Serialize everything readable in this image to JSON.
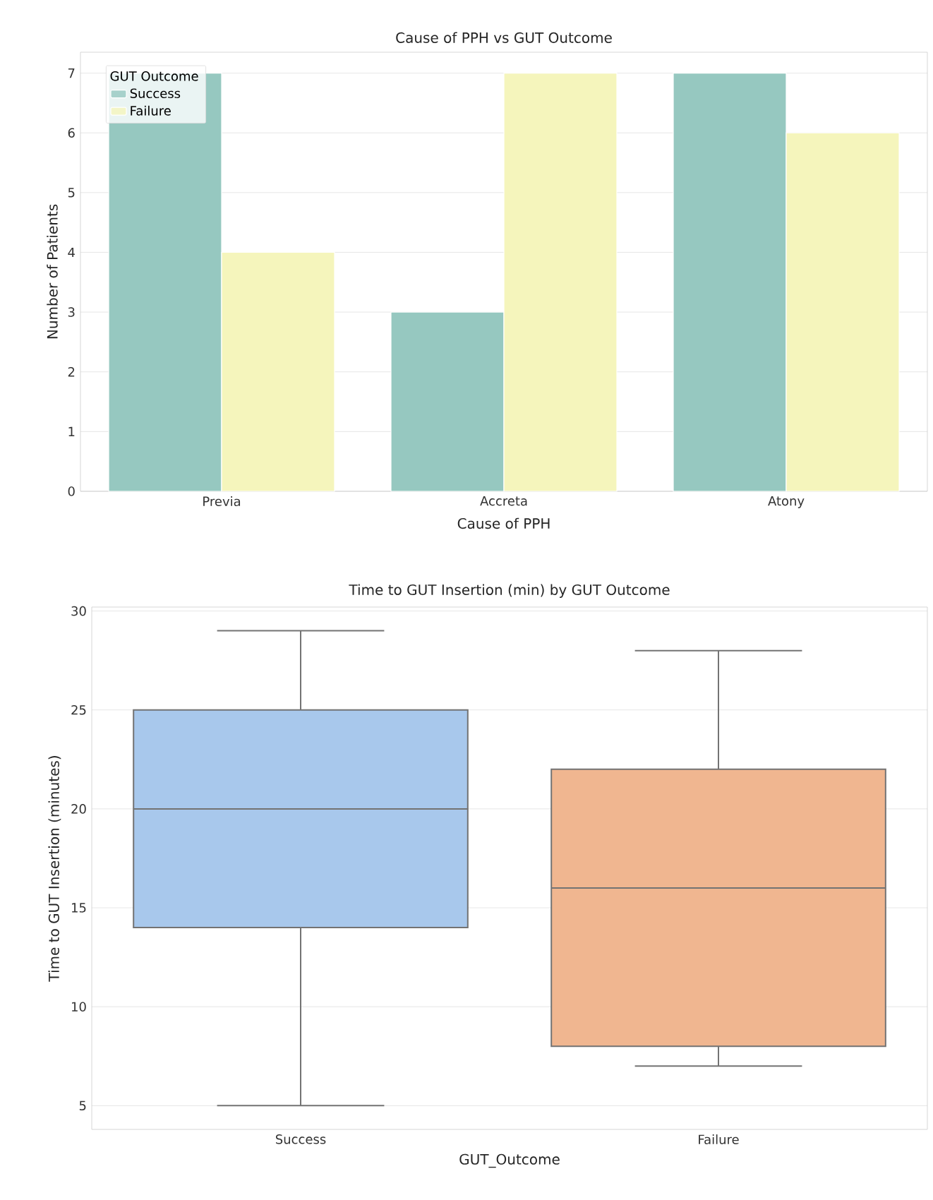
{
  "chart_data": [
    {
      "type": "bar",
      "title": "Cause of PPH vs GUT Outcome",
      "xlabel": "Cause of PPH",
      "ylabel": "Number of Patients",
      "legend_title": "GUT Outcome",
      "categories": [
        "Previa",
        "Accreta",
        "Atony"
      ],
      "series": [
        {
          "name": "Success",
          "color": "#96c8c0",
          "values": [
            7,
            3,
            7
          ]
        },
        {
          "name": "Failure",
          "color": "#f5f5bc",
          "values": [
            4,
            7,
            6
          ]
        }
      ],
      "ylim": [
        0,
        7.35
      ],
      "yticks": [
        0,
        1,
        2,
        3,
        4,
        5,
        6,
        7
      ],
      "grid": "y",
      "legend": "top left"
    },
    {
      "type": "box",
      "title": "Time to GUT Insertion (min) by GUT Outcome",
      "xlabel": "GUT_Outcome",
      "ylabel": "Time to GUT Insertion (minutes)",
      "categories": [
        "Success",
        "Failure"
      ],
      "boxes": [
        {
          "low": 5,
          "q1": 14,
          "median": 20,
          "q3": 25,
          "high": 29
        },
        {
          "low": 7,
          "q1": 8,
          "median": 16,
          "q3": 22,
          "high": 28
        }
      ],
      "colors": [
        "#a8c8ec",
        "#f0b690"
      ],
      "ylim": [
        3.8,
        30.2
      ],
      "yticks": [
        5,
        10,
        15,
        20,
        25,
        30
      ],
      "grid": "y"
    }
  ]
}
